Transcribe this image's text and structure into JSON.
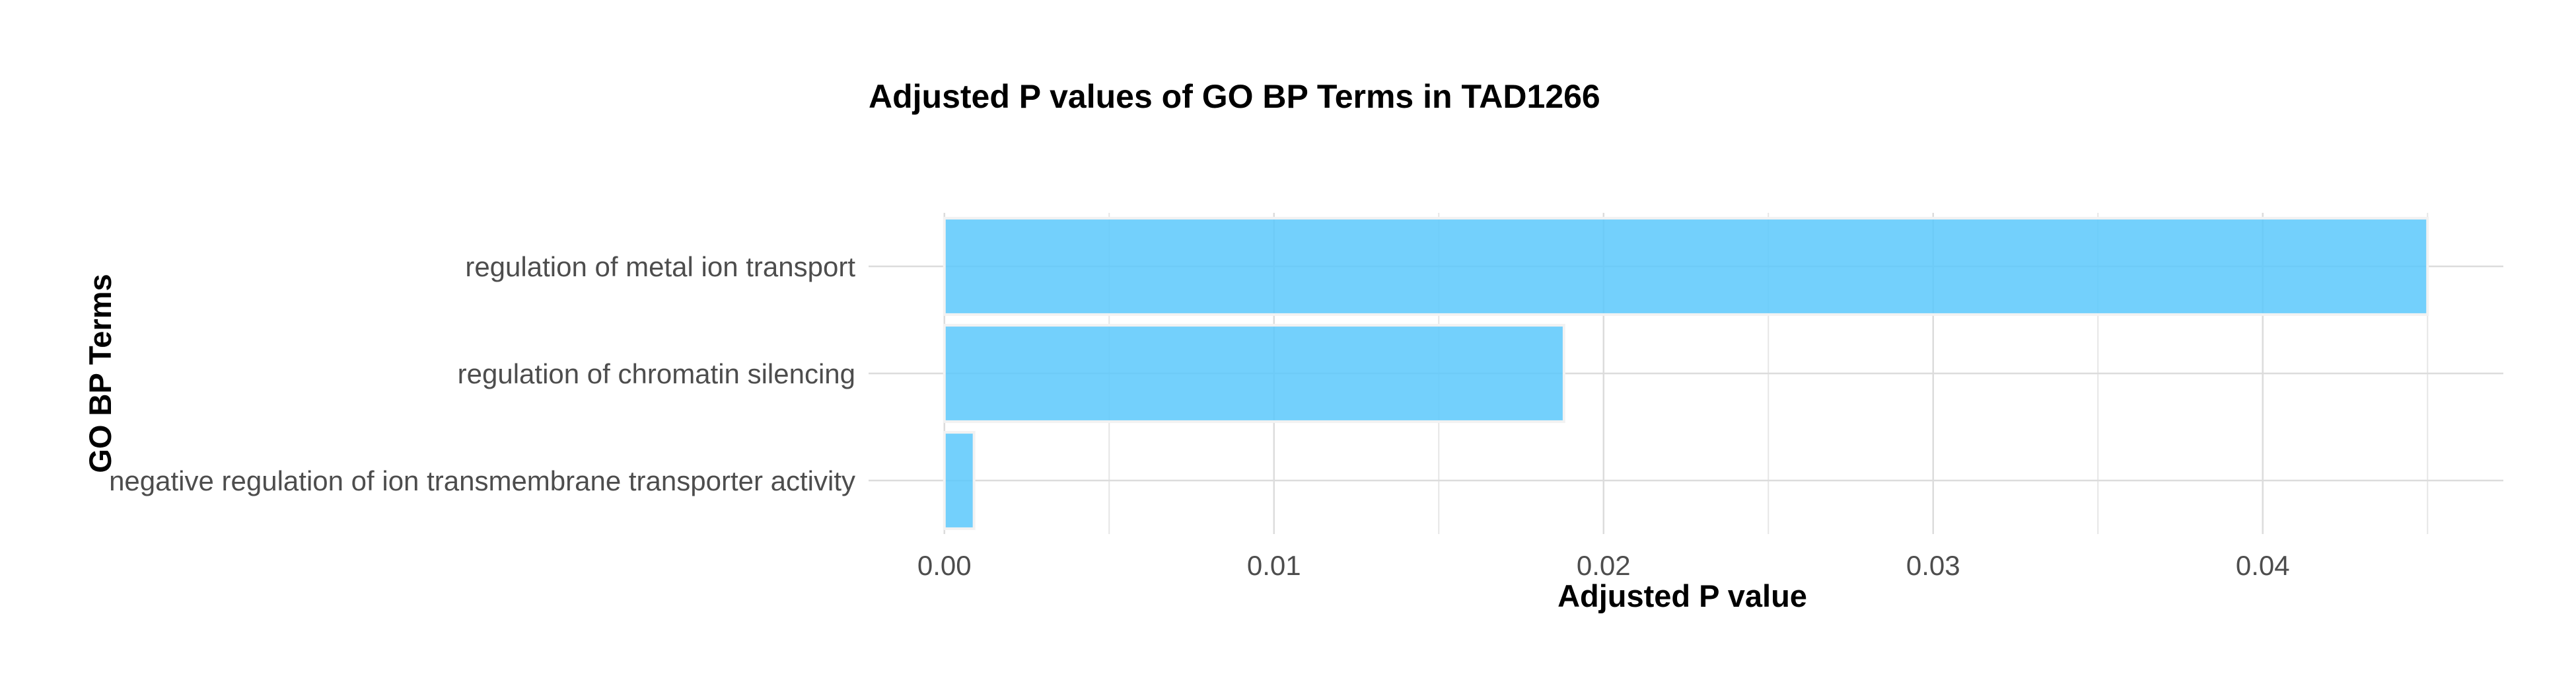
{
  "chart_data": {
    "type": "bar",
    "orientation": "horizontal",
    "title": "Adjusted P values of GO BP Terms in TAD1266",
    "xlabel": "Adjusted P value",
    "ylabel": "GO BP Terms",
    "categories": [
      "regulation of metal ion transport",
      "regulation of chromatin silencing",
      "negative regulation of ion transmembrane transporter activity"
    ],
    "values": [
      0.045,
      0.0188,
      0.0009
    ],
    "x_ticks": [
      0,
      0.01,
      0.02,
      0.03,
      0.04
    ],
    "x_tick_labels": [
      "0.00",
      "0.01",
      "0.02",
      "0.03",
      "0.04"
    ],
    "xlim": [
      -0.0023,
      0.0473
    ],
    "grid": true,
    "bar_color": "#5BC8FC",
    "bar_outline_color": "#F2F2F2",
    "gridline_color": "#DCDCDC",
    "legend": "none"
  }
}
